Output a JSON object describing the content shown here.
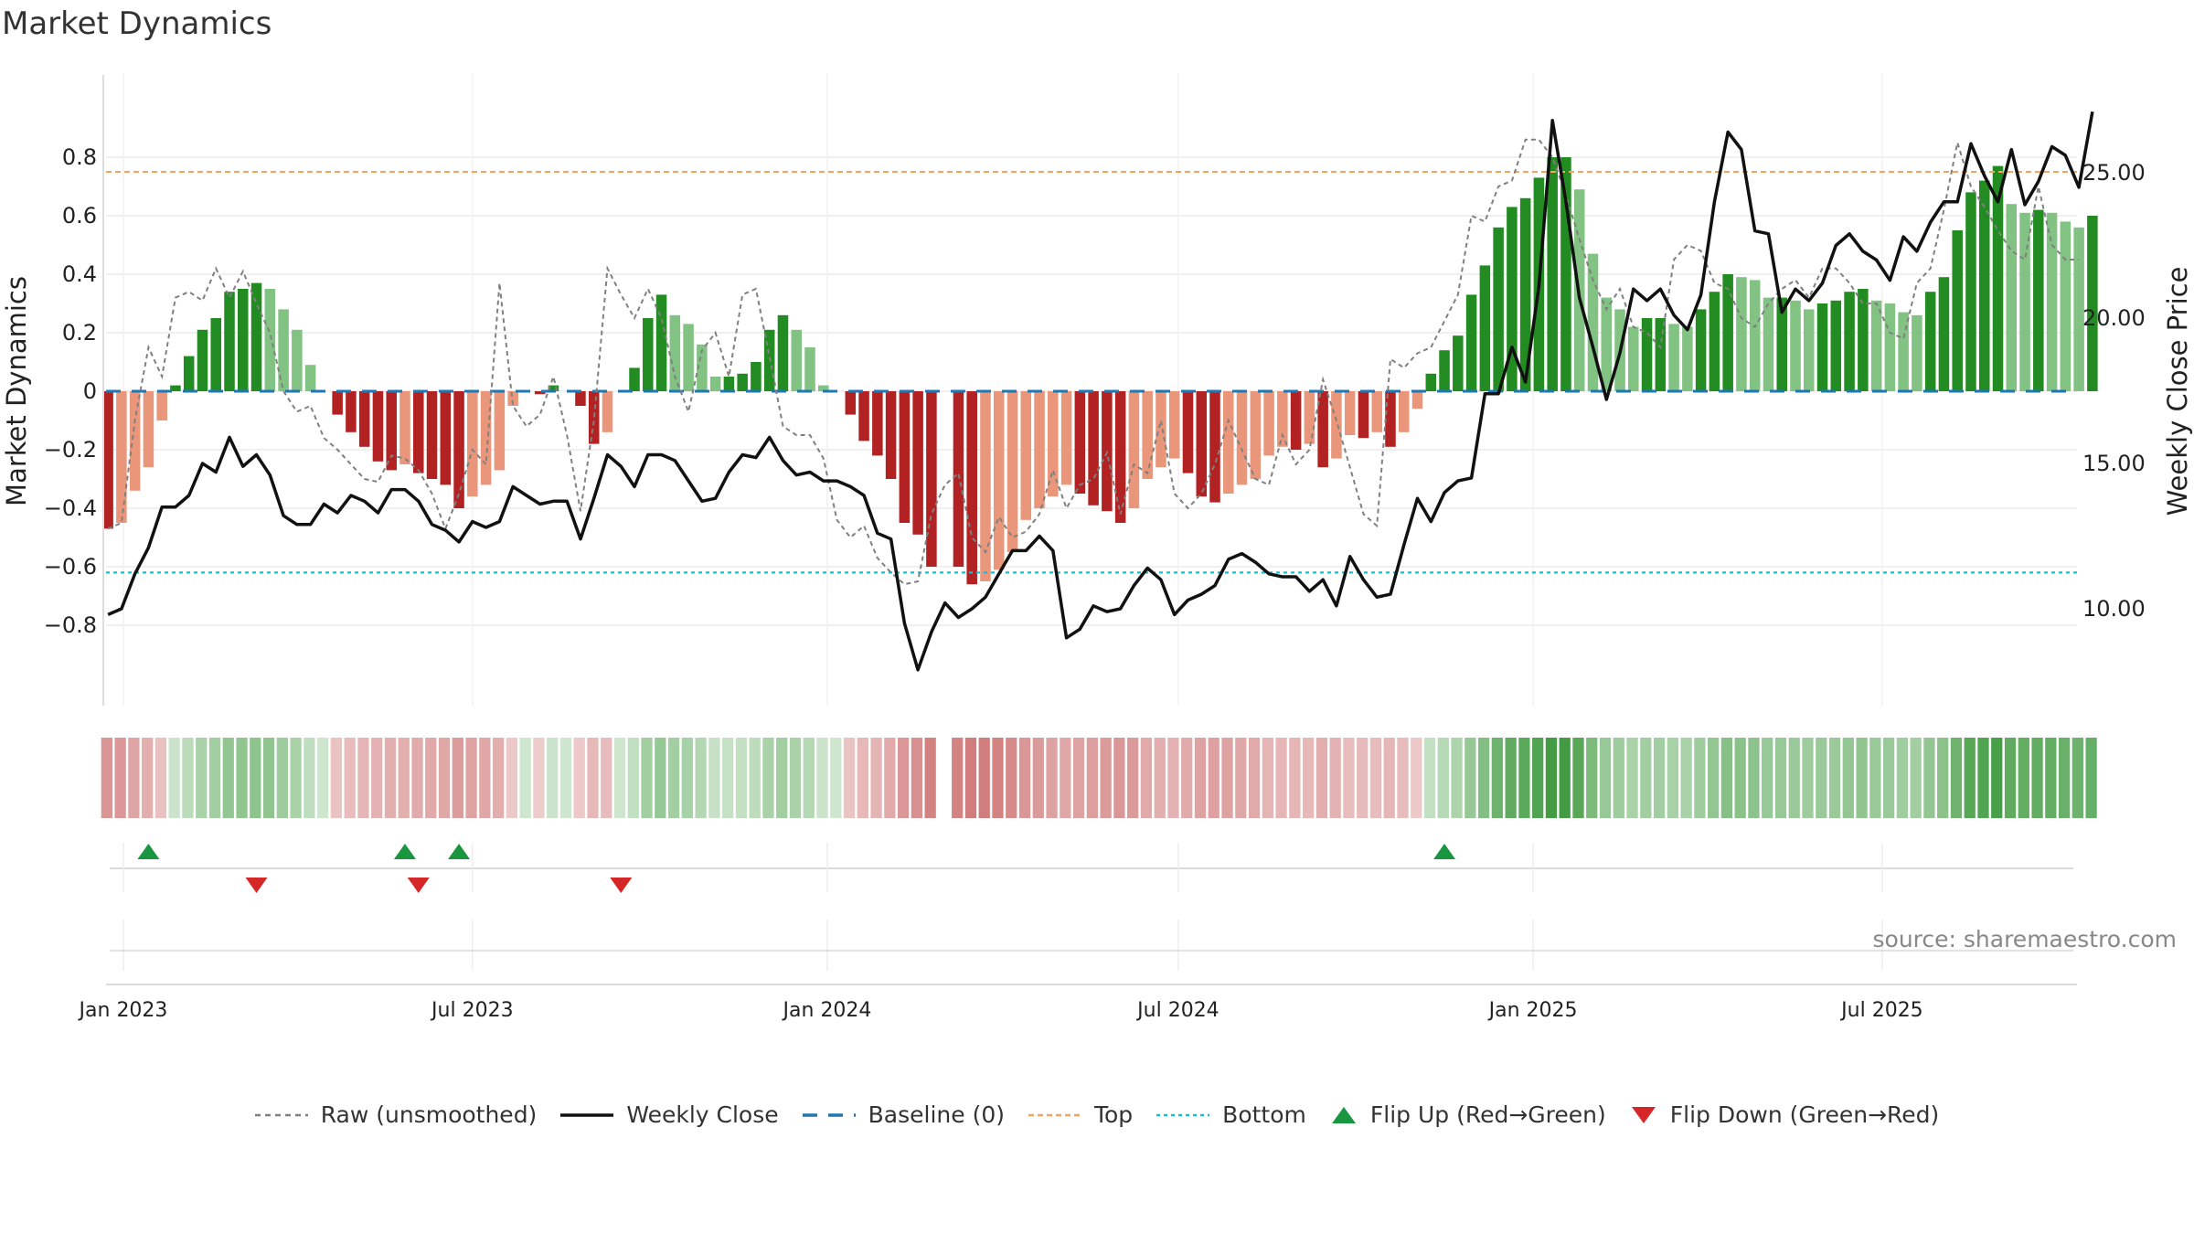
{
  "title": "Market Dynamics",
  "source": "source: sharemaestro.com",
  "chart_data": {
    "type": "bar",
    "title": "Market Dynamics",
    "ylabel": "Market Dynamics",
    "y2label": "Weekly Close Price",
    "ylim": [
      -0.85,
      0.85
    ],
    "y2lim": [
      7.0,
      28.0
    ],
    "y_ticks": [
      0.8,
      0.6,
      0.4,
      0.2,
      0,
      -0.2,
      -0.4,
      -0.6,
      -0.8
    ],
    "y_tick_labels": [
      "0.8",
      "0.6",
      "0.4",
      "0.2",
      "0",
      "−0.2",
      "−0.4",
      "−0.6",
      "−0.8"
    ],
    "y2_ticks": [
      25,
      20,
      15,
      10
    ],
    "y2_tick_labels": [
      "25.00",
      "20.00",
      "15.00",
      "10.00"
    ],
    "x_range": [
      "2022-12-23",
      "2025-10-10"
    ],
    "x_ticks": [
      "2023-01-01",
      "2023-07-01",
      "2024-01-01",
      "2024-07-01",
      "2025-01-01",
      "2025-07-01"
    ],
    "x_tick_labels": [
      "Jan 2023",
      "Jul 2023",
      "Jan 2024",
      "Jul 2024",
      "Jan 2025",
      "Jul 2025"
    ],
    "start_date": "2022-12-24",
    "weeks": 146,
    "top_line": 0.75,
    "bottom_line": -0.62,
    "baseline": 0,
    "colors": {
      "green_strong": "#228B22",
      "green_weak": "#82C282",
      "red_strong": "#B22222",
      "red_weak": "#E9967A",
      "raw": "#808080",
      "close": "#111111",
      "baseline": "#1F77B4",
      "top": "#F4A460",
      "bottom": "#17BECF",
      "flip_up": "#1A9641",
      "flip_down": "#D62728"
    },
    "series": [
      {
        "name": "Market Dynamics",
        "values": [
          -0.47,
          -0.45,
          -0.34,
          -0.26,
          -0.1,
          0.02,
          0.12,
          0.21,
          0.25,
          0.34,
          0.35,
          0.37,
          0.35,
          0.28,
          0.21,
          0.09,
          0.0,
          -0.08,
          -0.14,
          -0.19,
          -0.24,
          -0.27,
          -0.25,
          -0.28,
          -0.3,
          -0.32,
          -0.4,
          -0.36,
          -0.32,
          -0.27,
          -0.05,
          0.0,
          -0.01,
          0.02,
          0.0,
          -0.05,
          -0.18,
          -0.14,
          0.0,
          0.08,
          0.25,
          0.33,
          0.26,
          0.23,
          0.16,
          0.05,
          0.05,
          0.06,
          0.1,
          0.21,
          0.26,
          0.21,
          0.15,
          0.02,
          0.0,
          -0.08,
          -0.17,
          -0.22,
          -0.3,
          -0.45,
          -0.49,
          -0.6,
          0.0,
          -0.6,
          -0.66,
          -0.65,
          -0.61,
          -0.55,
          -0.44,
          -0.4,
          -0.36,
          -0.32,
          -0.35,
          -0.39,
          -0.41,
          -0.45,
          -0.4,
          -0.3,
          -0.26,
          -0.23,
          -0.28,
          -0.36,
          -0.38,
          -0.35,
          -0.32,
          -0.3,
          -0.22,
          -0.19,
          -0.2,
          -0.18,
          -0.26,
          -0.23,
          -0.15,
          -0.16,
          -0.14,
          -0.19,
          -0.14,
          -0.06,
          0.06,
          0.14,
          0.19,
          0.33,
          0.43,
          0.56,
          0.63,
          0.66,
          0.73,
          0.8,
          0.8,
          0.69,
          0.47,
          0.32,
          0.28,
          0.22,
          0.25,
          0.25,
          0.23,
          0.22,
          0.28,
          0.34,
          0.4,
          0.39,
          0.38,
          0.32,
          0.32,
          0.31,
          0.28,
          0.3,
          0.31,
          0.34,
          0.35,
          0.31,
          0.3,
          0.27,
          0.26,
          0.34,
          0.39,
          0.55,
          0.68,
          0.72,
          0.77,
          0.64,
          0.61,
          0.62,
          0.61,
          0.58,
          0.56,
          0.6
        ]
      },
      {
        "name": "Raw (unsmoothed)",
        "values": [
          -0.47,
          -0.45,
          -0.1,
          0.15,
          0.05,
          0.32,
          0.34,
          0.31,
          0.42,
          0.32,
          0.41,
          0.3,
          0.2,
          0.0,
          -0.07,
          -0.05,
          -0.16,
          -0.2,
          -0.25,
          -0.3,
          -0.31,
          -0.22,
          -0.23,
          -0.27,
          -0.35,
          -0.47,
          -0.35,
          -0.2,
          -0.25,
          0.37,
          -0.05,
          -0.12,
          -0.08,
          0.05,
          -0.15,
          -0.41,
          -0.1,
          0.42,
          0.33,
          0.25,
          0.35,
          0.25,
          0.05,
          -0.07,
          0.14,
          0.2,
          0.05,
          0.33,
          0.35,
          0.12,
          -0.12,
          -0.15,
          -0.15,
          -0.23,
          -0.44,
          -0.5,
          -0.46,
          -0.57,
          -0.62,
          -0.66,
          -0.65,
          -0.42,
          -0.32,
          -0.28,
          -0.5,
          -0.55,
          -0.43,
          -0.5,
          -0.48,
          -0.42,
          -0.27,
          -0.4,
          -0.32,
          -0.3,
          -0.21,
          -0.42,
          -0.25,
          -0.28,
          -0.1,
          -0.35,
          -0.4,
          -0.35,
          -0.25,
          -0.1,
          -0.2,
          -0.3,
          -0.32,
          -0.15,
          -0.25,
          -0.2,
          0.04,
          -0.1,
          -0.26,
          -0.42,
          -0.46,
          0.11,
          0.08,
          0.13,
          0.15,
          0.24,
          0.33,
          0.6,
          0.58,
          0.7,
          0.72,
          0.86,
          0.86,
          0.8,
          0.67,
          0.52,
          0.38,
          0.28,
          0.35,
          0.22,
          0.2,
          0.15,
          0.45,
          0.5,
          0.48,
          0.37,
          0.35,
          0.25,
          0.22,
          0.3,
          0.35,
          0.38,
          0.32,
          0.42,
          0.42,
          0.37,
          0.3,
          0.3,
          0.2,
          0.18,
          0.37,
          0.42,
          0.62,
          0.85,
          0.7,
          0.63,
          0.55,
          0.48,
          0.45,
          0.7,
          0.5,
          0.45,
          0.45
        ]
      },
      {
        "name": "Weekly Close",
        "values": [
          9.8,
          10.0,
          11.2,
          12.1,
          13.5,
          13.5,
          13.9,
          15.0,
          14.7,
          15.9,
          14.9,
          15.3,
          14.6,
          13.2,
          12.9,
          12.9,
          13.6,
          13.3,
          13.9,
          13.7,
          13.3,
          14.1,
          14.1,
          13.7,
          12.9,
          12.7,
          12.3,
          13.0,
          12.8,
          13.0,
          14.2,
          13.9,
          13.6,
          13.7,
          13.7,
          12.4,
          13.8,
          15.3,
          14.9,
          14.2,
          15.3,
          15.3,
          15.1,
          14.4,
          13.7,
          13.8,
          14.7,
          15.3,
          15.2,
          15.9,
          15.1,
          14.6,
          14.7,
          14.4,
          14.4,
          14.2,
          13.9,
          12.6,
          12.4,
          9.5,
          7.9,
          9.2,
          10.2,
          9.7,
          10.0,
          10.4,
          11.2,
          12.0,
          12.0,
          12.5,
          12.0,
          9.0,
          9.3,
          10.1,
          9.9,
          10.0,
          10.8,
          11.4,
          11.0,
          9.8,
          10.3,
          10.5,
          10.8,
          11.7,
          11.9,
          11.6,
          11.2,
          11.1,
          11.1,
          10.6,
          11.0,
          10.1,
          11.8,
          11.0,
          10.4,
          10.5,
          12.2,
          13.8,
          13.0,
          14.0,
          14.4,
          14.5,
          17.4,
          17.4,
          19.0,
          17.8,
          21.1,
          26.8,
          24.0,
          20.7,
          19.0,
          17.2,
          18.8,
          21.0,
          20.6,
          21.0,
          20.1,
          19.6,
          20.8,
          24.0,
          26.4,
          25.8,
          23.0,
          22.9,
          20.2,
          21.0,
          20.6,
          21.2,
          22.5,
          22.9,
          22.3,
          22.0,
          21.3,
          22.8,
          22.3,
          23.3,
          24.0,
          24.0,
          26.0,
          24.9,
          24.0,
          25.8,
          23.9,
          24.7,
          25.9,
          25.6,
          24.5,
          27.1
        ]
      }
    ],
    "flip_up_weeks": [
      3,
      22,
      26,
      99
    ],
    "flip_down_weeks": [
      11,
      23,
      38
    ],
    "missing_week": 62,
    "legend": [
      "Raw (unsmoothed)",
      "Weekly Close",
      "Baseline (0)",
      "Top",
      "Bottom",
      "Flip Up (Red→Green)",
      "Flip Down (Green→Red)"
    ],
    "legend_position": "bottom-center",
    "grid": true
  }
}
